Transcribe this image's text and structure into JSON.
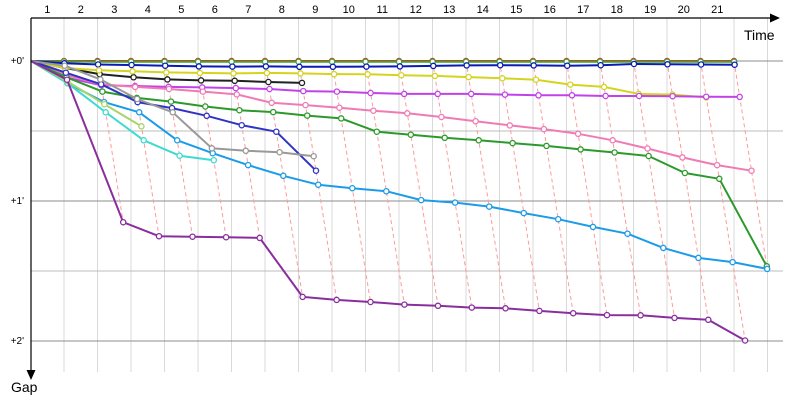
{
  "chart_data": {
    "type": "line",
    "title": "",
    "xlabel": "Time",
    "ylabel": "Gap",
    "x_tick_labels": [
      "1",
      "2",
      "3",
      "4",
      "5",
      "6",
      "7",
      "8",
      "9",
      "10",
      "11",
      "12",
      "13",
      "14",
      "15",
      "16",
      "17",
      "18",
      "19",
      "20",
      "21"
    ],
    "y_tick_labels": [
      "+0'",
      "+1'",
      "+2'"
    ],
    "y_tick_values": [
      0,
      60,
      120
    ],
    "ylim": [
      0,
      144
    ],
    "xlim": [
      0,
      22.25
    ],
    "y_inverted": true,
    "grid": true,
    "series": [
      {
        "color": "#ff2020",
        "lap_gaps": [
          0.0,
          0.0,
          0.0,
          0.0,
          0.0,
          0.0,
          0.0,
          0.0,
          0.0,
          0.0,
          0.0,
          0.0,
          0.0,
          0.0,
          0.0,
          0.0,
          0.0,
          0.0,
          0.0,
          0.0,
          0.0
        ]
      },
      {
        "color": "#35a835",
        "lap_gaps": [
          0.2,
          0.3,
          0.3,
          0.3,
          0.3,
          0.3,
          0.3,
          0.3,
          0.3,
          0.3,
          0.3,
          0.3,
          0.3,
          0.3,
          0.3,
          0.3,
          0.3,
          0.3,
          0.3,
          0.3,
          0.3
        ]
      },
      {
        "color": "#0a1ab5",
        "lap_gaps": [
          1.0,
          1.5,
          1.7,
          2.0,
          2.3,
          2.4,
          2.3,
          2.5,
          2.5,
          2.4,
          2.3,
          2.1,
          1.9,
          1.8,
          1.9,
          2.0,
          1.8,
          1.3,
          1.4,
          1.5,
          1.6
        ]
      },
      {
        "color": "#202020",
        "lap_gaps": [
          3.0,
          5.6,
          7.0,
          7.9,
          8.3,
          8.5,
          9.0,
          9.4
        ]
      },
      {
        "color": "#d4d420",
        "lap_gaps": [
          3.0,
          4.0,
          4.4,
          4.9,
          5.1,
          5.3,
          5.1,
          5.3,
          5.6,
          5.7,
          6.1,
          6.4,
          6.9,
          7.4,
          8.0,
          10.1,
          11.1,
          14.1,
          14.4,
          15.6
        ]
      },
      {
        "color": "#c242e8",
        "lap_gaps": [
          7.1,
          10.4,
          10.7,
          11.1,
          11.3,
          11.6,
          12.0,
          12.9,
          13.1,
          13.7,
          14.1,
          14.1,
          14.1,
          14.4,
          14.7,
          14.7,
          15.0,
          15.0,
          15.1,
          15.3,
          15.4
        ]
      },
      {
        "color": "#f07bb4",
        "lap_gaps": [
          6.0,
          10.0,
          11.1,
          12.0,
          13.1,
          14.3,
          17.9,
          18.9,
          20.0,
          21.3,
          22.4,
          24.0,
          25.8,
          27.6,
          29.2,
          31.2,
          34.0,
          37.5,
          41.3,
          44.6,
          47.0
        ]
      },
      {
        "color": "#2b9a2b",
        "lap_gaps": [
          7.0,
          13.1,
          15.8,
          17.4,
          19.5,
          21.1,
          21.9,
          23.4,
          24.6,
          30.3,
          31.6,
          32.9,
          34.0,
          35.2,
          36.4,
          37.9,
          39.2,
          40.7,
          48.0,
          50.5,
          88.0
        ]
      },
      {
        "color": "#1b9be8",
        "lap_gaps": [
          9.5,
          17.6,
          22.0,
          34.0,
          39.5,
          44.6,
          49.2,
          53.0,
          54.5,
          55.8,
          59.6,
          60.7,
          62.4,
          65.2,
          67.8,
          71.1,
          74.0,
          80.1,
          84.4,
          86.2,
          89.1
        ]
      },
      {
        "color": "#3034c4",
        "lap_gaps": [
          5.0,
          10.0,
          17.6,
          20.2,
          23.5,
          27.5,
          30.3,
          47.0
        ]
      },
      {
        "color": "#999999",
        "lap_gaps": [
          2.0,
          7.9,
          16.3,
          22.0,
          37.4,
          38.5,
          39.1,
          40.8
        ]
      },
      {
        "color": "#40dad0",
        "lap_gaps": [
          9.5,
          22.0,
          34.0,
          40.6,
          42.5
        ]
      },
      {
        "color": "#a8d468",
        "lap_gaps": [
          8.7,
          18.5,
          28.0
        ]
      },
      {
        "color": "#8a2e9e",
        "lap_gaps": [
          8.0,
          69.1,
          75.1,
          75.3,
          75.5,
          75.8,
          101.1,
          102.4,
          103.3,
          104.4,
          104.9,
          105.7,
          106.0,
          107.1,
          108.1,
          108.9,
          109.0,
          110.1,
          110.9,
          119.8
        ]
      }
    ]
  }
}
